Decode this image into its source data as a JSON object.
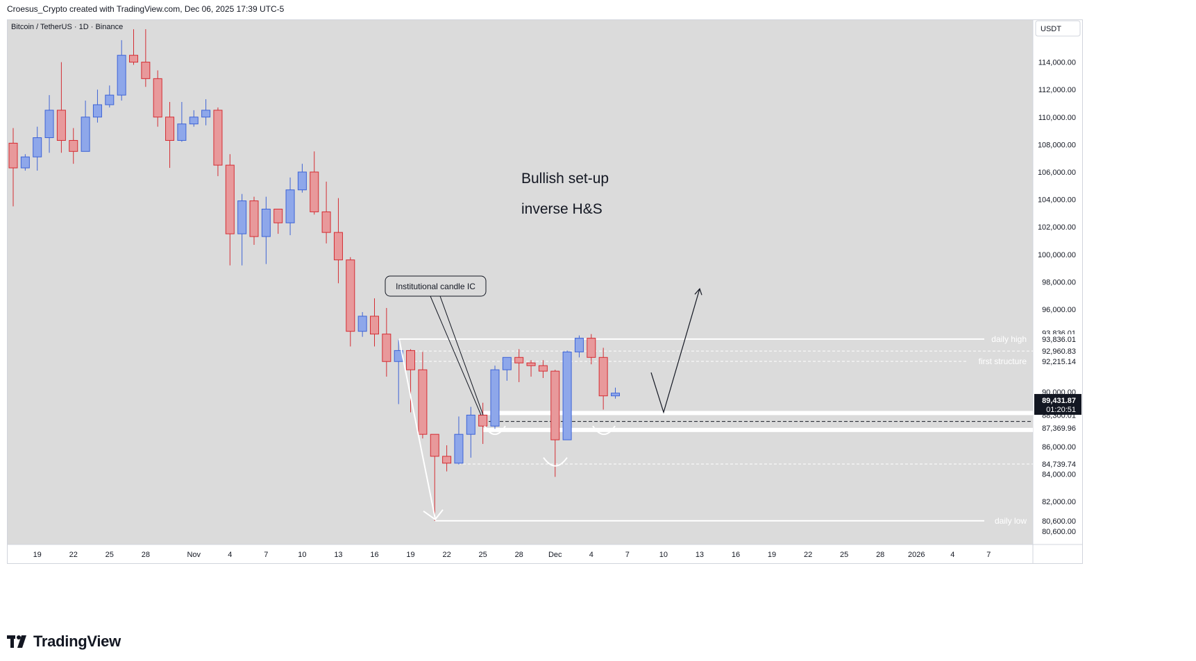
{
  "header": {
    "attribution": "Croesus_Crypto created with TradingView.com, Dec 06, 2025 17:39 UTC-5"
  },
  "symbol_label": "Bitcoin / TetherUS · 1D · Binance",
  "currency_badge": "USDT",
  "footer": {
    "brand": "TradingView"
  },
  "colors": {
    "up": "#8ea7ea",
    "down": "#e8999b",
    "up_border": "#3d63d6",
    "down_border": "#d42c32",
    "plot_bg": "#dbdbdb",
    "white": "#ffffff"
  },
  "annotations": {
    "title_line1": "Bullish set-up",
    "title_line2": "inverse H&S",
    "callout": "Institutional candle IC",
    "daily_high": "daily high",
    "first_structure": "first structure",
    "daily_low": "daily low"
  },
  "price_badges": {
    "last_price": "89,431.87",
    "countdown": "01:20:51"
  },
  "chart_data": {
    "type": "candlestick",
    "title": "Bitcoin / TetherUS · 1D · Binance",
    "currency": "USDT",
    "ylim": [
      78200,
      116400
    ],
    "y_ticks": [
      {
        "v": 114000,
        "label": "114,000.00"
      },
      {
        "v": 112000,
        "label": "112,000.00"
      },
      {
        "v": 110000,
        "label": "110,000.00"
      },
      {
        "v": 108000,
        "label": "108,000.00"
      },
      {
        "v": 106000,
        "label": "106,000.00"
      },
      {
        "v": 104000,
        "label": "104,000.00"
      },
      {
        "v": 102000,
        "label": "102,000.00"
      },
      {
        "v": 100000,
        "label": "100,000.00"
      },
      {
        "v": 98000,
        "label": "98,000.00"
      },
      {
        "v": 96000,
        "label": "96,000.00"
      },
      {
        "v": 90000,
        "label": "90,000.00"
      },
      {
        "v": 86000,
        "label": "86,000.00"
      },
      {
        "v": 84000,
        "label": "84,000.00"
      },
      {
        "v": 82000,
        "label": "82,000.00"
      }
    ],
    "level_labels": [
      {
        "v": 94290,
        "label": "93,836.01"
      },
      {
        "v": 93836.01,
        "label": "93,836.01"
      },
      {
        "v": 92960.83,
        "label": "92,960.83"
      },
      {
        "v": 92215.14,
        "label": "92,215.14"
      },
      {
        "v": 88300.01,
        "label": "88,300.01"
      },
      {
        "v": 87369.96,
        "label": "87,369.96"
      },
      {
        "v": 84739.74,
        "label": "84,739.74"
      },
      {
        "v": 80600.0,
        "label": "80,600.00"
      },
      {
        "v": 79850,
        "label": "80,600.00"
      }
    ],
    "x_ticks": [
      {
        "i": 2,
        "label": "19"
      },
      {
        "i": 5,
        "label": "22"
      },
      {
        "i": 8,
        "label": "25"
      },
      {
        "i": 11,
        "label": "28"
      },
      {
        "i": 15,
        "label": "Nov"
      },
      {
        "i": 18,
        "label": "4"
      },
      {
        "i": 21,
        "label": "7"
      },
      {
        "i": 24,
        "label": "10"
      },
      {
        "i": 27,
        "label": "13"
      },
      {
        "i": 30,
        "label": "16"
      },
      {
        "i": 33,
        "label": "19"
      },
      {
        "i": 36,
        "label": "22"
      },
      {
        "i": 39,
        "label": "25"
      },
      {
        "i": 42,
        "label": "28"
      },
      {
        "i": 45,
        "label": "Dec"
      },
      {
        "i": 48,
        "label": "4"
      },
      {
        "i": 51,
        "label": "7"
      },
      {
        "i": 54,
        "label": "10"
      },
      {
        "i": 57,
        "label": "13"
      },
      {
        "i": 60,
        "label": "16"
      },
      {
        "i": 63,
        "label": "19"
      },
      {
        "i": 66,
        "label": "22"
      },
      {
        "i": 69,
        "label": "25"
      },
      {
        "i": 72,
        "label": "28"
      },
      {
        "i": 75,
        "label": "2026"
      },
      {
        "i": 78,
        "label": "4"
      },
      {
        "i": 81,
        "label": "7"
      }
    ],
    "candles": [
      {
        "o": 108100,
        "h": 109200,
        "l": 103500,
        "c": 106300
      },
      {
        "o": 106300,
        "h": 107300,
        "l": 106100,
        "c": 107100
      },
      {
        "o": 107100,
        "h": 109300,
        "l": 106100,
        "c": 108500
      },
      {
        "o": 108500,
        "h": 111600,
        "l": 107400,
        "c": 110500
      },
      {
        "o": 110500,
        "h": 114000,
        "l": 107400,
        "c": 108300
      },
      {
        "o": 108300,
        "h": 109200,
        "l": 106600,
        "c": 107500
      },
      {
        "o": 107500,
        "h": 111200,
        "l": 107500,
        "c": 110000
      },
      {
        "o": 110000,
        "h": 112000,
        "l": 109600,
        "c": 110900
      },
      {
        "o": 110900,
        "h": 112300,
        "l": 110700,
        "c": 111600
      },
      {
        "o": 111600,
        "h": 115600,
        "l": 111200,
        "c": 114500
      },
      {
        "o": 114500,
        "h": 116400,
        "l": 113800,
        "c": 114000
      },
      {
        "o": 114000,
        "h": 116400,
        "l": 112200,
        "c": 112800
      },
      {
        "o": 112800,
        "h": 113400,
        "l": 109300,
        "c": 110000
      },
      {
        "o": 110000,
        "h": 111100,
        "l": 106300,
        "c": 108300
      },
      {
        "o": 108300,
        "h": 111100,
        "l": 108200,
        "c": 109500
      },
      {
        "o": 109500,
        "h": 110500,
        "l": 109300,
        "c": 110000
      },
      {
        "o": 110000,
        "h": 111300,
        "l": 109400,
        "c": 110500
      },
      {
        "o": 110500,
        "h": 110700,
        "l": 105700,
        "c": 106500
      },
      {
        "o": 106500,
        "h": 107300,
        "l": 99200,
        "c": 101500
      },
      {
        "o": 101500,
        "h": 104400,
        "l": 99200,
        "c": 103900
      },
      {
        "o": 103900,
        "h": 104200,
        "l": 100700,
        "c": 101300
      },
      {
        "o": 101300,
        "h": 104200,
        "l": 99300,
        "c": 103300
      },
      {
        "o": 103300,
        "h": 103300,
        "l": 101500,
        "c": 102300
      },
      {
        "o": 102300,
        "h": 105600,
        "l": 101400,
        "c": 104700
      },
      {
        "o": 104700,
        "h": 106600,
        "l": 104500,
        "c": 106000
      },
      {
        "o": 106000,
        "h": 107500,
        "l": 102900,
        "c": 103100
      },
      {
        "o": 103100,
        "h": 105300,
        "l": 100800,
        "c": 101600
      },
      {
        "o": 101600,
        "h": 104100,
        "l": 97900,
        "c": 99600
      },
      {
        "o": 99600,
        "h": 99800,
        "l": 93300,
        "c": 94400
      },
      {
        "o": 94400,
        "h": 95800,
        "l": 94000,
        "c": 95500
      },
      {
        "o": 95500,
        "h": 96800,
        "l": 93300,
        "c": 94200
      },
      {
        "o": 94200,
        "h": 96100,
        "l": 91100,
        "c": 92200
      },
      {
        "o": 92200,
        "h": 93800,
        "l": 89100,
        "c": 93000
      },
      {
        "o": 93000,
        "h": 93100,
        "l": 88500,
        "c": 91600
      },
      {
        "o": 91600,
        "h": 92900,
        "l": 86600,
        "c": 86900
      },
      {
        "o": 86900,
        "h": 86900,
        "l": 80600,
        "c": 85300
      },
      {
        "o": 85300,
        "h": 86100,
        "l": 84200,
        "c": 84800
      },
      {
        "o": 84800,
        "h": 88200,
        "l": 84700,
        "c": 86900
      },
      {
        "o": 86900,
        "h": 88900,
        "l": 85200,
        "c": 88300
      },
      {
        "o": 88300,
        "h": 89200,
        "l": 86200,
        "c": 87500
      },
      {
        "o": 87500,
        "h": 91900,
        "l": 87300,
        "c": 91600
      },
      {
        "o": 91600,
        "h": 92200,
        "l": 90800,
        "c": 92500
      },
      {
        "o": 92500,
        "h": 93100,
        "l": 90700,
        "c": 92100
      },
      {
        "o": 92100,
        "h": 92300,
        "l": 91100,
        "c": 91900
      },
      {
        "o": 91900,
        "h": 92300,
        "l": 91000,
        "c": 91500
      },
      {
        "o": 91500,
        "h": 91600,
        "l": 83800,
        "c": 86500
      },
      {
        "o": 86500,
        "h": 93000,
        "l": 86500,
        "c": 92900
      },
      {
        "o": 92900,
        "h": 94100,
        "l": 92500,
        "c": 93900
      },
      {
        "o": 93900,
        "h": 94200,
        "l": 92000,
        "c": 92500
      },
      {
        "o": 92500,
        "h": 93200,
        "l": 88700,
        "c": 89700
      },
      {
        "o": 89700,
        "h": 90300,
        "l": 89500,
        "c": 89900
      }
    ],
    "shifted_indices": [
      {
        "from": 32,
        "offset": 0
      }
    ]
  }
}
